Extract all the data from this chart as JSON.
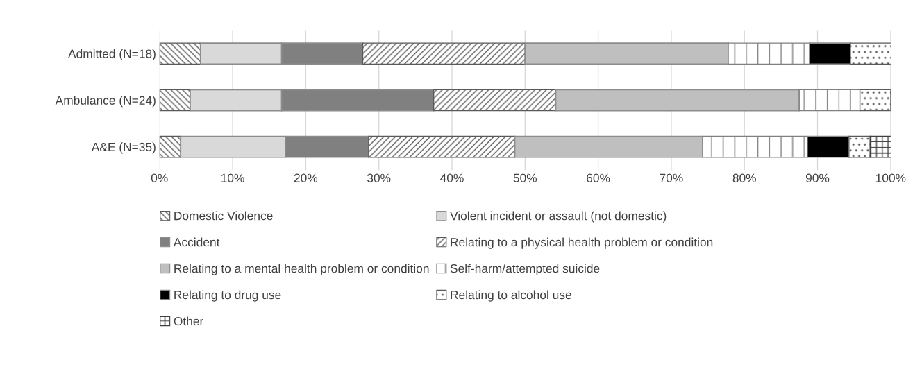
{
  "chart_data": {
    "type": "bar",
    "orientation": "horizontal",
    "stacked": true,
    "categories": [
      "Admitted (N=18)",
      "Ambulance (N=24)",
      "A&E (N=35)"
    ],
    "series": [
      {
        "name": "Domestic Violence",
        "color": "#595959",
        "values": [
          5.6,
          4.2,
          2.9
        ]
      },
      {
        "name": "Violent incident or assault (not domestic)",
        "color": "#d9d9d9",
        "values": [
          11.1,
          12.5,
          14.3
        ]
      },
      {
        "name": "Accident",
        "color": "#808080",
        "values": [
          11.1,
          20.8,
          11.4
        ]
      },
      {
        "name": "Relating to a physical health problem or condition",
        "color": "#595959",
        "values": [
          22.2,
          16.7,
          20.0
        ]
      },
      {
        "name": "Relating to a mental health problem or condition",
        "color": "#bfbfbf",
        "values": [
          27.8,
          33.3,
          25.7
        ]
      },
      {
        "name": "Self-harm/attempted suicide",
        "color": "#808080",
        "values": [
          11.1,
          8.3,
          14.3
        ]
      },
      {
        "name": "Relating to drug use",
        "color": "#000000",
        "values": [
          5.6,
          null,
          5.7
        ]
      },
      {
        "name": "Relating to alcohol use",
        "color": "#595959",
        "values": [
          5.6,
          4.2,
          2.9
        ]
      },
      {
        "name": "Other",
        "color": "#404040",
        "values": [
          null,
          null,
          2.9
        ]
      }
    ],
    "xlim": [
      0,
      100
    ],
    "xticks": [
      {
        "value": 0,
        "label": "0%"
      },
      {
        "value": 10,
        "label": "10%"
      },
      {
        "value": 20,
        "label": "20%"
      },
      {
        "value": 30,
        "label": "30%"
      },
      {
        "value": 40,
        "label": "40%"
      },
      {
        "value": 50,
        "label": "50%"
      },
      {
        "value": 60,
        "label": "60%"
      },
      {
        "value": 70,
        "label": "70%"
      },
      {
        "value": 80,
        "label": "80%"
      },
      {
        "value": 90,
        "label": "90%"
      },
      {
        "value": 100,
        "label": "100%"
      }
    ],
    "grid": "x",
    "legend": "bottom"
  }
}
